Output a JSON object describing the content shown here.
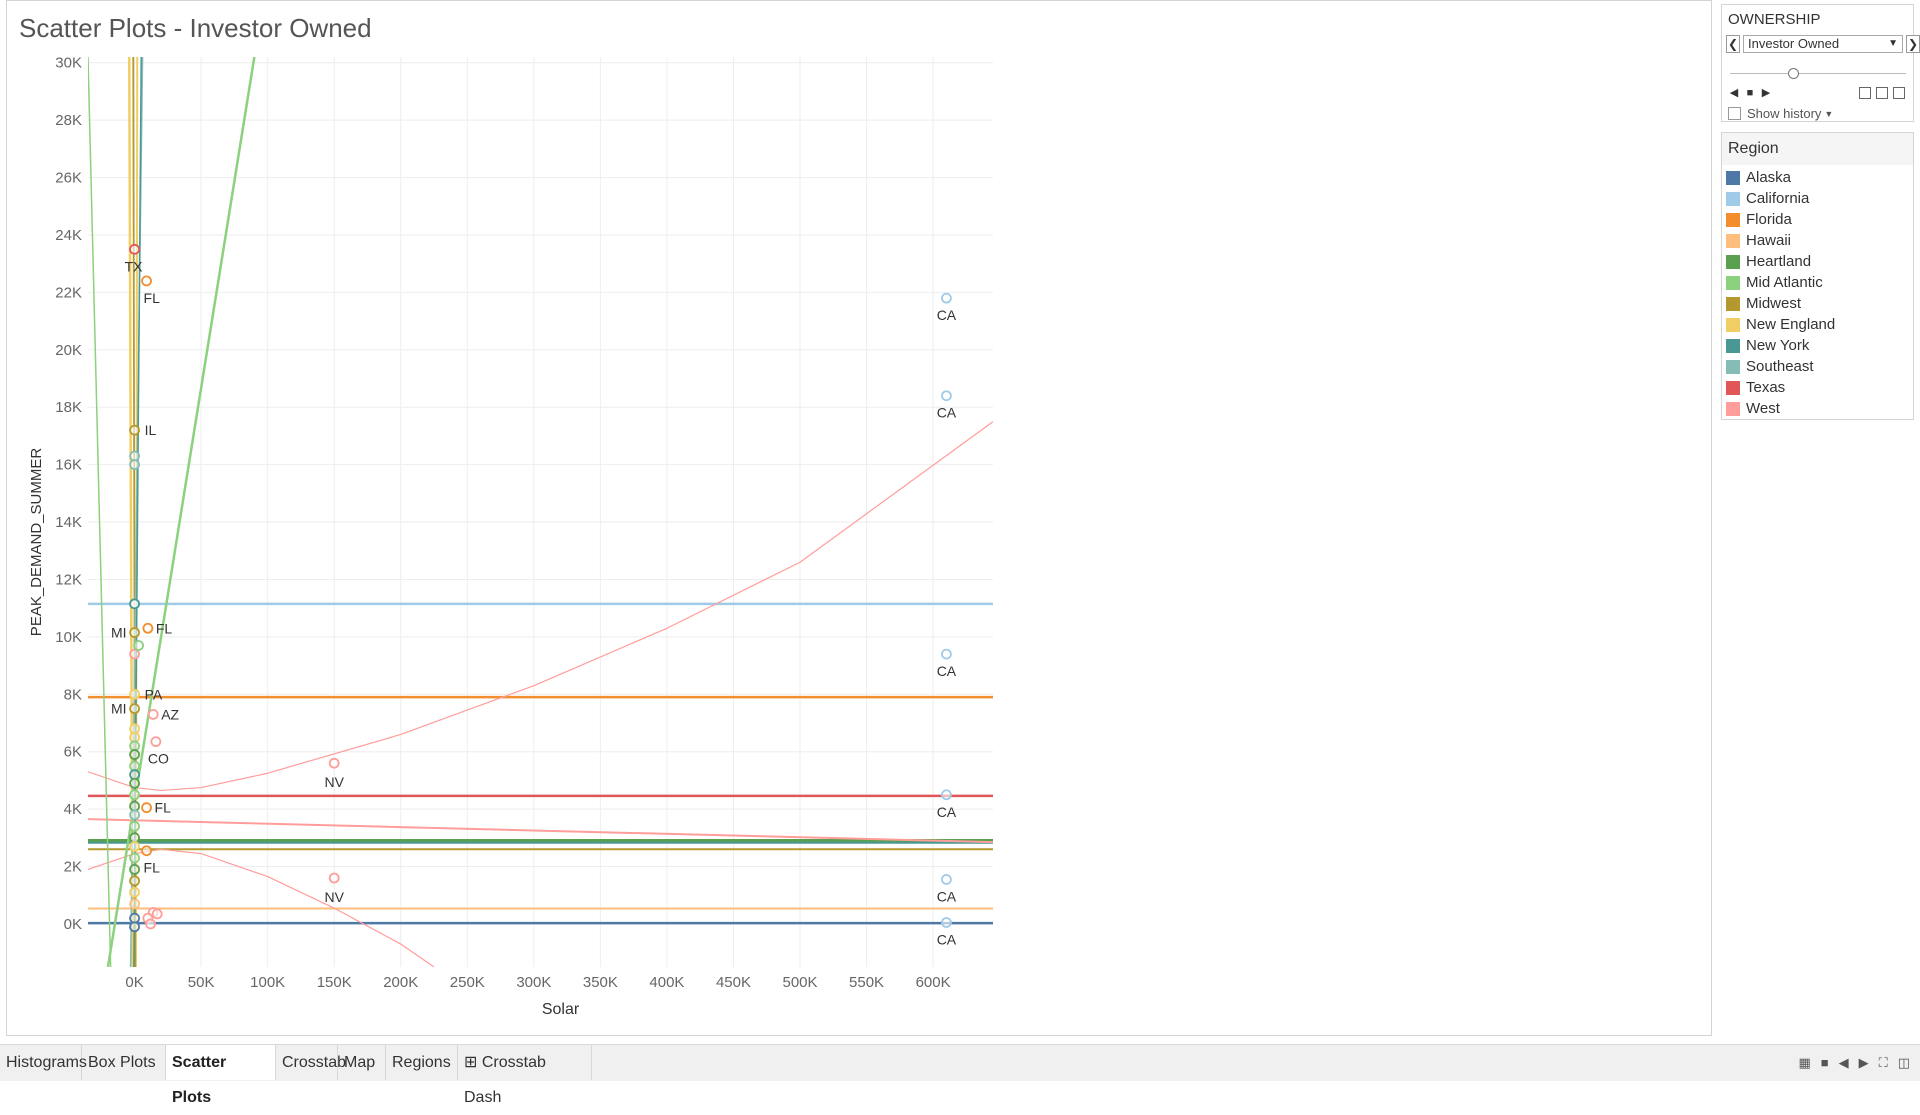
{
  "title": "Scatter Plots - Investor Owned",
  "filter": {
    "title": "OWNERSHIP",
    "selected": "Investor Owned",
    "prev_icon": "chevron-left-icon",
    "next_icon": "chevron-right-icon",
    "show_history": "Show history",
    "slider_level": 0.34
  },
  "legend": {
    "title": "Region",
    "items": [
      {
        "name": "Alaska",
        "color": "#4e79a7"
      },
      {
        "name": "California",
        "color": "#a0cbe8"
      },
      {
        "name": "Florida",
        "color": "#f28e2b"
      },
      {
        "name": "Hawaii",
        "color": "#ffbe7d"
      },
      {
        "name": "Heartland",
        "color": "#59a14f"
      },
      {
        "name": "Mid Atlantic",
        "color": "#8cd17d"
      },
      {
        "name": "Midwest",
        "color": "#b6992d"
      },
      {
        "name": "New England",
        "color": "#f1ce63"
      },
      {
        "name": "New York",
        "color": "#499894"
      },
      {
        "name": "Southeast",
        "color": "#86bcb6"
      },
      {
        "name": "Texas",
        "color": "#e15759"
      },
      {
        "name": "West",
        "color": "#ff9d9a"
      }
    ]
  },
  "tabs": [
    {
      "label": "Histograms",
      "active": false
    },
    {
      "label": "Box Plots",
      "active": false
    },
    {
      "label": "Scatter Plots",
      "active": true
    },
    {
      "label": "Crosstab",
      "active": false
    },
    {
      "label": "Map",
      "active": false
    },
    {
      "label": "Regions",
      "active": false
    },
    {
      "label": "⊞ Crosstab Dash",
      "active": false
    }
  ],
  "chart_data": {
    "type": "scatter",
    "xlabel": "Solar",
    "ylabel": "PEAK_DEMAND_SUMMER",
    "xlim": [
      -35000,
      645000
    ],
    "ylim": [
      -1500,
      30200
    ],
    "x_ticks": [
      0,
      50000,
      100000,
      150000,
      200000,
      250000,
      300000,
      350000,
      400000,
      450000,
      500000,
      550000,
      600000
    ],
    "x_tick_labels": [
      "0K",
      "50K",
      "100K",
      "150K",
      "200K",
      "250K",
      "300K",
      "350K",
      "400K",
      "450K",
      "500K",
      "550K",
      "600K"
    ],
    "y_ticks": [
      0,
      2000,
      4000,
      6000,
      8000,
      10000,
      12000,
      14000,
      16000,
      18000,
      20000,
      22000,
      24000,
      26000,
      28000,
      30000
    ],
    "y_tick_labels": [
      "0K",
      "2K",
      "4K",
      "6K",
      "8K",
      "10K",
      "12K",
      "14K",
      "16K",
      "18K",
      "20K",
      "22K",
      "24K",
      "26K",
      "28K",
      "30K"
    ],
    "grid": true,
    "points": [
      {
        "x": 610000,
        "y": 21800,
        "region": "California",
        "label": "CA"
      },
      {
        "x": 610000,
        "y": 18400,
        "region": "California",
        "label": "CA"
      },
      {
        "x": 610000,
        "y": 9400,
        "region": "California",
        "label": "CA"
      },
      {
        "x": 610000,
        "y": 4500,
        "region": "California",
        "label": "CA"
      },
      {
        "x": 610000,
        "y": 1550,
        "region": "California",
        "label": "CA"
      },
      {
        "x": 610000,
        "y": 50,
        "region": "California",
        "label": "CA"
      },
      {
        "x": 0,
        "y": 11150,
        "region": "California",
        "label": ""
      },
      {
        "x": 150000,
        "y": 5600,
        "region": "West",
        "label": "NV"
      },
      {
        "x": 150000,
        "y": 1600,
        "region": "West",
        "label": "NV"
      },
      {
        "x": 14000,
        "y": 7300,
        "region": "West",
        "label": "AZ"
      },
      {
        "x": 16000,
        "y": 6350,
        "region": "West",
        "label": "CO"
      },
      {
        "x": 0,
        "y": 9400,
        "region": "West",
        "label": ""
      },
      {
        "x": 14000,
        "y": 400,
        "region": "West",
        "label": ""
      },
      {
        "x": 17000,
        "y": 350,
        "region": "West",
        "label": ""
      },
      {
        "x": 10000,
        "y": 200,
        "region": "West",
        "label": ""
      },
      {
        "x": 12000,
        "y": 0,
        "region": "West",
        "label": ""
      },
      {
        "x": 0,
        "y": 23500,
        "region": "Texas",
        "label": "TX"
      },
      {
        "x": 9000,
        "y": 22400,
        "region": "Florida",
        "label": "FL"
      },
      {
        "x": 10000,
        "y": 10300,
        "region": "Florida",
        "label": "FL"
      },
      {
        "x": 9000,
        "y": 4050,
        "region": "Florida",
        "label": "FL"
      },
      {
        "x": 9000,
        "y": 2550,
        "region": "Florida",
        "label": "FL"
      },
      {
        "x": 0,
        "y": 17200,
        "region": "Midwest",
        "label": "IL"
      },
      {
        "x": 0,
        "y": 10150,
        "region": "Midwest",
        "label": "MI"
      },
      {
        "x": 0,
        "y": 7500,
        "region": "Midwest",
        "label": "MI"
      },
      {
        "x": 0,
        "y": 8000,
        "region": "New England",
        "label": "PA"
      },
      {
        "x": 0,
        "y": 16300,
        "region": "Southeast",
        "label": ""
      },
      {
        "x": 0,
        "y": 16000,
        "region": "Southeast",
        "label": ""
      },
      {
        "x": 3000,
        "y": 9700,
        "region": "Mid Atlantic",
        "label": ""
      },
      {
        "x": 0,
        "y": 6800,
        "region": "New England",
        "label": ""
      },
      {
        "x": 0,
        "y": 6500,
        "region": "New England",
        "label": ""
      },
      {
        "x": 0,
        "y": 6200,
        "region": "Mid Atlantic",
        "label": ""
      },
      {
        "x": 0,
        "y": 5900,
        "region": "Heartland",
        "label": ""
      },
      {
        "x": 0,
        "y": 5500,
        "region": "Mid Atlantic",
        "label": ""
      },
      {
        "x": 0,
        "y": 5200,
        "region": "New York",
        "label": ""
      },
      {
        "x": 0,
        "y": 4900,
        "region": "Heartland",
        "label": ""
      },
      {
        "x": 0,
        "y": 4500,
        "region": "Mid Atlantic",
        "label": ""
      },
      {
        "x": 0,
        "y": 4100,
        "region": "Heartland",
        "label": ""
      },
      {
        "x": 0,
        "y": 3800,
        "region": "Southeast",
        "label": ""
      },
      {
        "x": 0,
        "y": 3400,
        "region": "Mid Atlantic",
        "label": ""
      },
      {
        "x": 0,
        "y": 3000,
        "region": "Heartland",
        "label": ""
      },
      {
        "x": 0,
        "y": 2700,
        "region": "New England",
        "label": ""
      },
      {
        "x": 0,
        "y": 2300,
        "region": "Mid Atlantic",
        "label": ""
      },
      {
        "x": 0,
        "y": 1900,
        "region": "Heartland",
        "label": ""
      },
      {
        "x": 0,
        "y": 1500,
        "region": "Midwest",
        "label": ""
      },
      {
        "x": 0,
        "y": 1100,
        "region": "New England",
        "label": ""
      },
      {
        "x": 0,
        "y": 700,
        "region": "Hawaii",
        "label": ""
      },
      {
        "x": 0,
        "y": 200,
        "region": "Alaska",
        "label": ""
      },
      {
        "x": 0,
        "y": -100,
        "region": "Alaska",
        "label": ""
      },
      {
        "x": 0,
        "y": 11150,
        "region": "New York",
        "label": ""
      }
    ],
    "trend_lines": [
      {
        "region": "California",
        "kind": "line",
        "pts": [
          [
            -35000,
            11150
          ],
          [
            645000,
            11150
          ]
        ],
        "width": 2.5
      },
      {
        "region": "Florida",
        "kind": "line",
        "pts": [
          [
            -35000,
            7900
          ],
          [
            645000,
            7900
          ]
        ],
        "width": 2.5
      },
      {
        "region": "Texas",
        "kind": "line",
        "pts": [
          [
            -35000,
            4460
          ],
          [
            645000,
            4460
          ]
        ],
        "width": 2.5
      },
      {
        "region": "Heartland",
        "kind": "line",
        "pts": [
          [
            -35000,
            2900
          ],
          [
            645000,
            2900
          ]
        ],
        "width": 3.5
      },
      {
        "region": "New York",
        "kind": "line",
        "pts": [
          [
            -35000,
            2830
          ],
          [
            645000,
            2830
          ]
        ],
        "width": 2
      },
      {
        "region": "Midwest",
        "kind": "line",
        "pts": [
          [
            -35000,
            2600
          ],
          [
            645000,
            2600
          ]
        ],
        "width": 2
      },
      {
        "region": "Hawaii",
        "kind": "line",
        "pts": [
          [
            -35000,
            540
          ],
          [
            645000,
            540
          ]
        ],
        "width": 2
      },
      {
        "region": "Alaska",
        "kind": "line",
        "pts": [
          [
            -35000,
            30
          ],
          [
            645000,
            30
          ]
        ],
        "width": 2.5
      },
      {
        "region": "West",
        "kind": "line",
        "pts": [
          [
            -35000,
            3650
          ],
          [
            645000,
            2850
          ]
        ],
        "width": 2
      },
      {
        "region": "West",
        "kind": "curve",
        "pts": [
          [
            -35000,
            5300
          ],
          [
            0,
            4750
          ],
          [
            20000,
            4650
          ],
          [
            50000,
            4750
          ],
          [
            100000,
            5250
          ],
          [
            200000,
            6600
          ],
          [
            300000,
            8300
          ],
          [
            400000,
            10300
          ],
          [
            500000,
            12600
          ],
          [
            645000,
            17500
          ]
        ],
        "width": 1.2
      },
      {
        "region": "West",
        "kind": "curve",
        "pts": [
          [
            -35000,
            1900
          ],
          [
            0,
            2450
          ],
          [
            20000,
            2600
          ],
          [
            50000,
            2450
          ],
          [
            100000,
            1650
          ],
          [
            150000,
            550
          ],
          [
            200000,
            -700
          ],
          [
            225000,
            -1500
          ]
        ],
        "width": 1.2
      },
      {
        "region": "Mid Atlantic",
        "kind": "line",
        "pts": [
          [
            -20000,
            -1500
          ],
          [
            90000,
            30200
          ]
        ],
        "width": 2.5
      },
      {
        "region": "Mid Atlantic",
        "kind": "line",
        "pts": [
          [
            -35000,
            30200
          ],
          [
            -18000,
            -1500
          ]
        ],
        "width": 1.5
      },
      {
        "region": "New England",
        "kind": "line",
        "pts": [
          [
            -4000,
            30200
          ],
          [
            -1500,
            -1500
          ]
        ],
        "width": 2.5
      },
      {
        "region": "New England",
        "kind": "line",
        "pts": [
          [
            2000,
            30200
          ],
          [
            1000,
            -1500
          ]
        ],
        "width": 2
      },
      {
        "region": "Midwest",
        "kind": "line",
        "pts": [
          [
            -1000,
            30200
          ],
          [
            500,
            -1500
          ]
        ],
        "width": 1.8
      },
      {
        "region": "Southeast",
        "kind": "line",
        "pts": [
          [
            6000,
            30200
          ],
          [
            -3000,
            -1500
          ]
        ],
        "width": 1.5
      },
      {
        "region": "New York",
        "kind": "line",
        "pts": [
          [
            5000,
            30200
          ],
          [
            -500,
            -1500
          ]
        ],
        "width": 1.5
      }
    ]
  },
  "nav_icons": [
    "sheet-grid-icon",
    "filmstrip-icon",
    "tab-prev-icon",
    "tab-next-icon",
    "fullscreen-icon",
    "present-icon"
  ]
}
